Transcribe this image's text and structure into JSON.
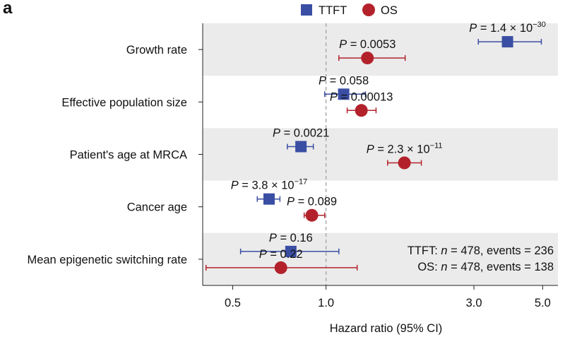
{
  "panel_label": "a",
  "chart_data": {
    "type": "forest",
    "xscale": "log",
    "xlim": [
      0.4,
      5.6
    ],
    "xlabel": "Hazard ratio (95% CI)",
    "xticks": [
      0.5,
      1.0,
      3.0,
      5.0
    ],
    "xtick_labels": [
      "0.5",
      "1.0",
      "3.0",
      "5.0"
    ],
    "reference_line": 1.0,
    "categories": [
      "Growth rate",
      "Effective population size",
      "Patient's age at MRCA",
      "Cancer age",
      "Mean epigenetic switching rate"
    ],
    "series": [
      {
        "name": "TTFT",
        "marker": "square",
        "color": "#3a4ea3",
        "points": [
          {
            "hr": 3.85,
            "lo": 3.1,
            "hi": 4.95,
            "p_base": "1.4 × 10",
            "p_exp": "−30"
          },
          {
            "hr": 1.14,
            "lo": 0.99,
            "hi": 1.34,
            "p_base": "0.058",
            "p_exp": ""
          },
          {
            "hr": 0.83,
            "lo": 0.75,
            "hi": 0.91,
            "p_base": "0.0021",
            "p_exp": ""
          },
          {
            "hr": 0.655,
            "lo": 0.6,
            "hi": 0.71,
            "p_base": "3.8 × 10",
            "p_exp": "−17"
          },
          {
            "hr": 0.77,
            "lo": 0.53,
            "hi": 1.1,
            "p_base": "0.16",
            "p_exp": ""
          }
        ]
      },
      {
        "name": "OS",
        "marker": "circle",
        "color": "#b3222b",
        "points": [
          {
            "hr": 1.36,
            "lo": 1.1,
            "hi": 1.8,
            "p_base": "0.0053",
            "p_exp": ""
          },
          {
            "hr": 1.3,
            "lo": 1.17,
            "hi": 1.45,
            "p_base": "0.00013",
            "p_exp": ""
          },
          {
            "hr": 1.79,
            "lo": 1.58,
            "hi": 2.03,
            "p_base": "2.3 × 10",
            "p_exp": "−11"
          },
          {
            "hr": 0.9,
            "lo": 0.85,
            "hi": 0.99,
            "p_base": "0.089",
            "p_exp": ""
          },
          {
            "hr": 0.715,
            "lo": 0.41,
            "hi": 1.26,
            "p_base": "0.22",
            "p_exp": ""
          }
        ]
      }
    ],
    "annotations": [
      "TTFT: n = 478, events = 236",
      "OS: n = 478, events = 138"
    ],
    "p_prefix": "P",
    "band_color": "#ebebeb"
  }
}
